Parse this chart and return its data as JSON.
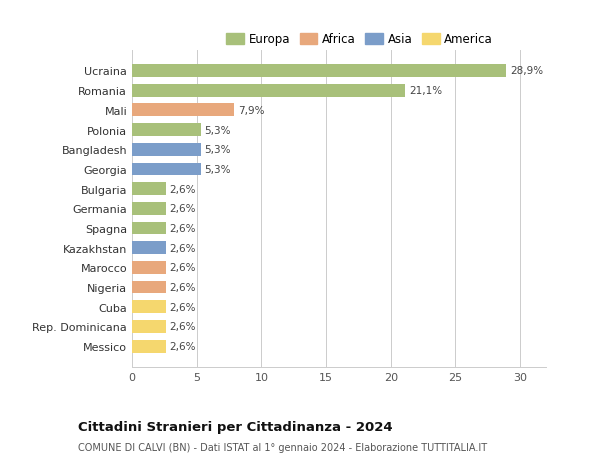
{
  "categories": [
    "Ucraina",
    "Romania",
    "Mali",
    "Polonia",
    "Bangladesh",
    "Georgia",
    "Bulgaria",
    "Germania",
    "Spagna",
    "Kazakhstan",
    "Marocco",
    "Nigeria",
    "Cuba",
    "Rep. Dominicana",
    "Messico"
  ],
  "values": [
    28.9,
    21.1,
    7.9,
    5.3,
    5.3,
    5.3,
    2.6,
    2.6,
    2.6,
    2.6,
    2.6,
    2.6,
    2.6,
    2.6,
    2.6
  ],
  "labels": [
    "28,9%",
    "21,1%",
    "7,9%",
    "5,3%",
    "5,3%",
    "5,3%",
    "2,6%",
    "2,6%",
    "2,6%",
    "2,6%",
    "2,6%",
    "2,6%",
    "2,6%",
    "2,6%",
    "2,6%"
  ],
  "colors": [
    "#a8c07a",
    "#a8c07a",
    "#e8a87c",
    "#a8c07a",
    "#7b9dc9",
    "#7b9dc9",
    "#a8c07a",
    "#a8c07a",
    "#a8c07a",
    "#7b9dc9",
    "#e8a87c",
    "#e8a87c",
    "#f5d76e",
    "#f5d76e",
    "#f5d76e"
  ],
  "legend": [
    {
      "label": "Europa",
      "color": "#a8c07a"
    },
    {
      "label": "Africa",
      "color": "#e8a87c"
    },
    {
      "label": "Asia",
      "color": "#7b9dc9"
    },
    {
      "label": "America",
      "color": "#f5d76e"
    }
  ],
  "title": "Cittadini Stranieri per Cittadinanza - 2024",
  "subtitle": "COMUNE DI CALVI (BN) - Dati ISTAT al 1° gennaio 2024 - Elaborazione TUTTITALIA.IT",
  "xlim": [
    0,
    32
  ],
  "xticks": [
    0,
    5,
    10,
    15,
    20,
    25,
    30
  ],
  "bg_color": "#ffffff",
  "grid_color": "#cccccc"
}
